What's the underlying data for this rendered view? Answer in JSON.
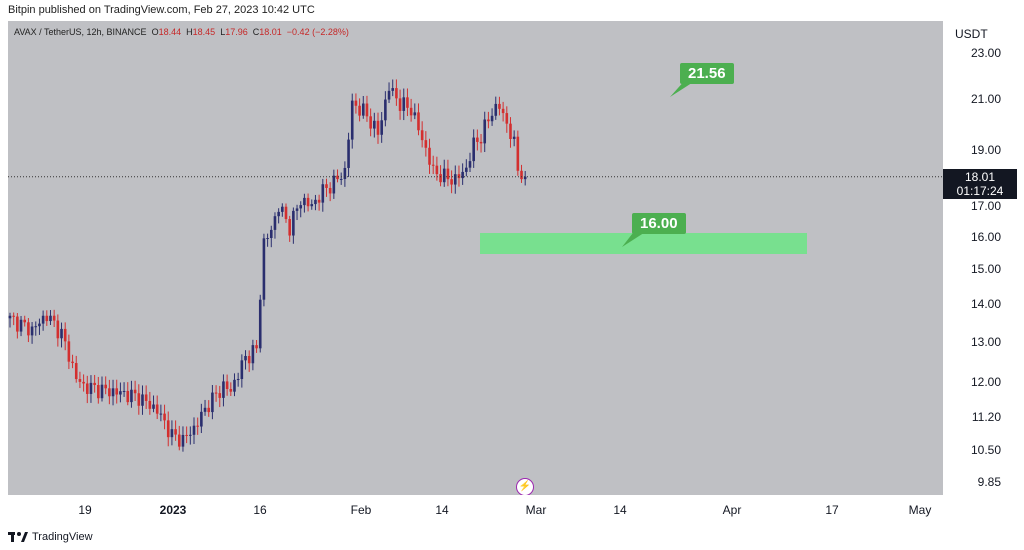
{
  "header": {
    "published": "Bitpin published on TradingView.com, Feb 27, 2023 10:42 UTC"
  },
  "symbol": {
    "pair": "AVAX / TetherUS, 12h, BINANCE",
    "o_label": "O",
    "open": "18.44",
    "h_label": "H",
    "high": "18.45",
    "l_label": "L",
    "low": "17.96",
    "c_label": "C",
    "close": "18.01",
    "change": "−0.42 (−2.28%)"
  },
  "price_axis": {
    "unit": "USDT",
    "ticks": [
      "23.00",
      "21.00",
      "19.00",
      "17.00",
      "16.00",
      "15.00",
      "14.00",
      "13.00",
      "12.00",
      "11.20",
      "10.50",
      "9.85"
    ]
  },
  "time_axis": {
    "ticks": [
      "19",
      "2023",
      "16",
      "Feb",
      "14",
      "Mar",
      "14",
      "Apr",
      "17",
      "May"
    ]
  },
  "last_price": {
    "price": "18.01",
    "countdown": "01:17:24"
  },
  "annotations": {
    "target_label": "21.56",
    "support_label": "16.00"
  },
  "footer": {
    "brand": "TradingView"
  },
  "colors": {
    "up": "#2a2e6e",
    "down": "#d32f2f",
    "pane": "#bfc0c4",
    "tag": "#4caf50",
    "zone": "#78e08f"
  },
  "chart_data": {
    "type": "candlestick",
    "symbol": "AVAX / TetherUS",
    "interval": "12h",
    "exchange": "BINANCE",
    "y_scale": "log",
    "ylim": [
      9.6,
      24.5
    ],
    "current_price": 18.01,
    "annotations": [
      {
        "type": "price_label",
        "value": 21.56
      },
      {
        "type": "zone",
        "value": 16.0,
        "range": [
          15.8,
          16.4
        ]
      }
    ],
    "x_ticks": [
      "19",
      "2023",
      "16",
      "Feb",
      "14",
      "Mar",
      "14",
      "Apr",
      "17",
      "May"
    ],
    "y_ticks": [
      23.0,
      21.0,
      19.0,
      17.0,
      16.0,
      15.0,
      14.0,
      13.0,
      12.0,
      11.2,
      10.5,
      9.85
    ],
    "price_path": [
      [
        0,
        13.6
      ],
      [
        6,
        13.3
      ],
      [
        10,
        13.7
      ],
      [
        14,
        13.2
      ],
      [
        18,
        12.1
      ],
      [
        20,
        11.9
      ],
      [
        26,
        11.8
      ],
      [
        30,
        11.75
      ],
      [
        35,
        11.65
      ],
      [
        40,
        11.35
      ],
      [
        44,
        10.8
      ],
      [
        47,
        10.7
      ],
      [
        50,
        10.95
      ],
      [
        54,
        11.5
      ],
      [
        58,
        11.9
      ],
      [
        60,
        11.8
      ],
      [
        64,
        12.6
      ],
      [
        67,
        12.8
      ],
      [
        69,
        15.8
      ],
      [
        71,
        16.2
      ],
      [
        73,
        17.0
      ],
      [
        76,
        16.3
      ],
      [
        79,
        17.2
      ],
      [
        82,
        17.0
      ],
      [
        85,
        17.5
      ],
      [
        88,
        17.8
      ],
      [
        91,
        18.2
      ],
      [
        93,
        20.8
      ],
      [
        96,
        20.5
      ],
      [
        98,
        20.1
      ],
      [
        100,
        19.6
      ],
      [
        103,
        21.5
      ],
      [
        106,
        20.8
      ],
      [
        109,
        20.6
      ],
      [
        112,
        19.4
      ],
      [
        115,
        18.2
      ],
      [
        118,
        18.0
      ],
      [
        121,
        17.9
      ],
      [
        124,
        18.3
      ],
      [
        126,
        19.2
      ],
      [
        128,
        19.5
      ],
      [
        131,
        20.5
      ],
      [
        133,
        20.7
      ],
      [
        135,
        20.0
      ],
      [
        137,
        19.2
      ],
      [
        138,
        18.3
      ],
      [
        140,
        18.01
      ]
    ]
  }
}
